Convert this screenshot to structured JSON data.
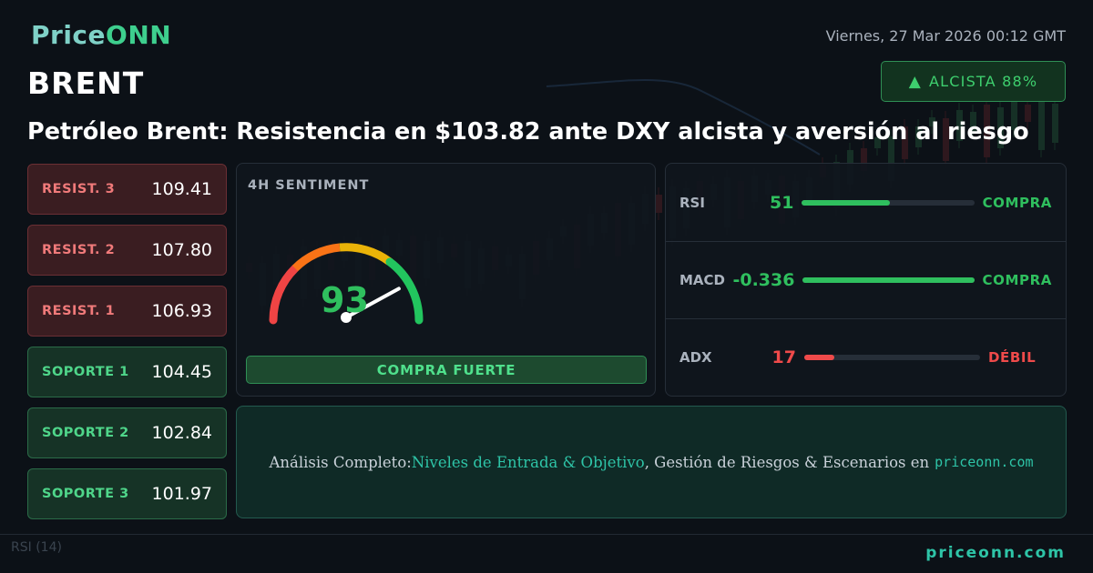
{
  "brand": {
    "name_a": "Price",
    "name_b": "ONN"
  },
  "symbol": "BRENT",
  "datetime": "Viernes, 27 Mar 2026 00:12 GMT",
  "trend": {
    "arrow": "▲",
    "label": "ALCISTA 88%"
  },
  "headline": "Petróleo Brent: Resistencia en $103.82 ante DXY alcista y aversión al riesgo",
  "levels": [
    {
      "label": "RESIST. 3",
      "value": "109.41",
      "kind": "resistance"
    },
    {
      "label": "RESIST. 2",
      "value": "107.80",
      "kind": "resistance"
    },
    {
      "label": "RESIST. 1",
      "value": "106.93",
      "kind": "resistance"
    },
    {
      "label": "SOPORTE 1",
      "value": "104.45",
      "kind": "support"
    },
    {
      "label": "SOPORTE 2",
      "value": "102.84",
      "kind": "support"
    },
    {
      "label": "SOPORTE 3",
      "value": "101.97",
      "kind": "support"
    }
  ],
  "sentiment": {
    "title": "4H SENTIMENT",
    "score": "93",
    "score_value": 93,
    "verdict": "COMPRA FUERTE"
  },
  "indicators": [
    {
      "name": "RSI",
      "value": "51",
      "fill": 0.51,
      "status": "COMPRA",
      "color": "#2fbf5e"
    },
    {
      "name": "MACD",
      "value": "-0.336",
      "fill": 1.0,
      "status": "COMPRA",
      "color": "#2fbf5e"
    },
    {
      "name": "ADX",
      "value": "17",
      "fill": 0.17,
      "status": "DÉBIL",
      "color": "#ef4a4a"
    }
  ],
  "cta": {
    "prefix": "Análisis Completo: ",
    "highlight": "Niveles de Entrada & Objetivo",
    "middle": ", Gestión de Riesgos & Escenarios en",
    "site": "priceonn.com"
  },
  "footer": {
    "url": "priceonn.com",
    "rsi_label": "RSI (14)"
  },
  "colors": {
    "accent": "#2ec4a7",
    "bullish": "#2fbf5e",
    "bearish": "#ef4a4a",
    "gauge_stops": [
      "#ef4444",
      "#f97316",
      "#eab308",
      "#22c55e"
    ]
  }
}
